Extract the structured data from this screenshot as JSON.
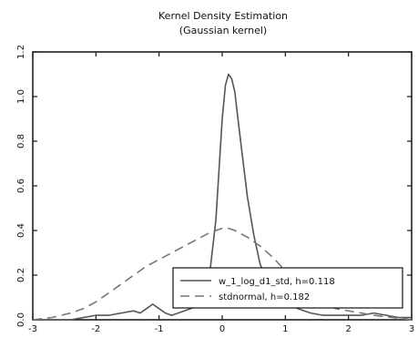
{
  "chart_data": {
    "type": "line",
    "title": "Kernel Density Estimation",
    "subtitle": "(Gaussian kernel)",
    "xlabel": "",
    "ylabel": "",
    "xlim": [
      -3,
      3
    ],
    "ylim": [
      0,
      1.2
    ],
    "xticks": [
      "-3",
      "-2",
      "-1",
      "0",
      "1",
      "2",
      "3"
    ],
    "yticks": [
      "0.0",
      "0.2",
      "0.4",
      "0.6",
      "0.8",
      "1.0",
      "1.2"
    ],
    "grid": false,
    "legend_position": "bottom-right",
    "series": [
      {
        "name": "w_1_log_d1_std, h=0.118",
        "style": "solid",
        "color": "#555555",
        "x": [
          -3.0,
          -2.7,
          -2.4,
          -2.2,
          -2.0,
          -1.8,
          -1.6,
          -1.4,
          -1.3,
          -1.2,
          -1.1,
          -1.0,
          -0.9,
          -0.8,
          -0.6,
          -0.4,
          -0.3,
          -0.2,
          -0.1,
          0.0,
          0.05,
          0.1,
          0.15,
          0.2,
          0.25,
          0.3,
          0.4,
          0.5,
          0.6,
          0.7,
          0.8,
          0.9,
          1.0,
          1.2,
          1.4,
          1.6,
          1.8,
          2.0,
          2.2,
          2.4,
          2.6,
          2.8,
          3.0
        ],
        "y": [
          0.0,
          0.0,
          0.0,
          0.01,
          0.02,
          0.02,
          0.03,
          0.04,
          0.03,
          0.05,
          0.07,
          0.05,
          0.03,
          0.02,
          0.04,
          0.06,
          0.1,
          0.2,
          0.45,
          0.9,
          1.05,
          1.1,
          1.08,
          1.02,
          0.9,
          0.78,
          0.55,
          0.38,
          0.25,
          0.18,
          0.14,
          0.1,
          0.07,
          0.05,
          0.03,
          0.02,
          0.02,
          0.02,
          0.02,
          0.03,
          0.02,
          0.01,
          0.01
        ]
      },
      {
        "name": "stdnormal, h=0.182",
        "style": "dashed",
        "color": "#777777",
        "x": [
          -3.0,
          -2.7,
          -2.4,
          -2.2,
          -2.0,
          -1.8,
          -1.6,
          -1.4,
          -1.2,
          -1.0,
          -0.8,
          -0.6,
          -0.4,
          -0.2,
          0.0,
          0.1,
          0.2,
          0.4,
          0.6,
          0.8,
          1.0,
          1.2,
          1.4,
          1.6,
          1.8,
          2.0,
          2.2,
          2.4,
          2.7,
          3.0
        ],
        "y": [
          0.0,
          0.01,
          0.03,
          0.05,
          0.08,
          0.12,
          0.16,
          0.2,
          0.24,
          0.27,
          0.3,
          0.33,
          0.36,
          0.39,
          0.41,
          0.41,
          0.4,
          0.37,
          0.33,
          0.28,
          0.22,
          0.16,
          0.11,
          0.07,
          0.05,
          0.04,
          0.03,
          0.02,
          0.01,
          0.0
        ]
      }
    ]
  }
}
